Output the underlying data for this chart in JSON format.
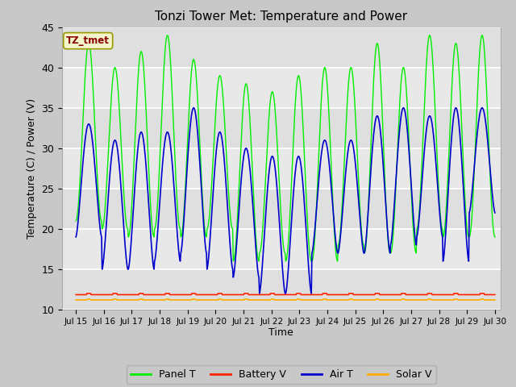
{
  "title": "Tonzi Tower Met: Temperature and Power",
  "xlabel": "Time",
  "ylabel": "Temperature (C) / Power (V)",
  "ylim": [
    10,
    45
  ],
  "xlim_days": [
    14.5,
    30.2
  ],
  "tz_label": "TZ_tmet",
  "fig_facecolor": "#c8c8c8",
  "axes_facecolor": "#e8e8e8",
  "legend": [
    "Panel T",
    "Battery V",
    "Air T",
    "Solar V"
  ],
  "legend_colors": [
    "#00ee00",
    "#ff2200",
    "#0000cc",
    "#ffaa00"
  ],
  "x_ticks": [
    15,
    16,
    17,
    18,
    19,
    20,
    21,
    22,
    23,
    24,
    25,
    26,
    27,
    28,
    29,
    30
  ],
  "x_tick_labels": [
    "Jul 15",
    "Jul 16",
    "Jul 17",
    "Jul 18",
    "Jul 19",
    "Jul 20",
    "Jul 21",
    "Jul 22",
    "Jul 23",
    "Jul 24",
    "Jul 25",
    "Jul 26",
    "Jul 27",
    "Jul 28",
    "Jul 29",
    "Jul 30"
  ],
  "y_ticks": [
    10,
    15,
    20,
    25,
    30,
    35,
    40,
    45
  ],
  "panel_t_peaks": [
    43,
    40,
    42,
    44,
    41,
    39,
    38,
    37,
    39,
    40,
    40,
    43,
    40,
    44,
    43,
    44
  ],
  "panel_t_troughs": [
    21,
    20,
    19,
    20,
    19,
    20,
    16,
    17,
    16,
    16,
    18,
    17,
    17,
    20,
    19,
    19
  ],
  "air_t_peaks": [
    33,
    31,
    32,
    32,
    35,
    32,
    30,
    29,
    29,
    31,
    31,
    34,
    35,
    34,
    35,
    35
  ],
  "air_t_troughs": [
    19,
    15,
    15,
    16,
    17,
    15,
    14,
    12,
    12,
    17,
    17,
    17,
    18,
    19,
    16,
    22
  ],
  "battery_v_base": 11.85,
  "solar_v_base": 11.2,
  "panel_color": "#00ee00",
  "battery_color": "#ff2200",
  "air_color": "#0000cc",
  "solar_color": "#ffaa00"
}
